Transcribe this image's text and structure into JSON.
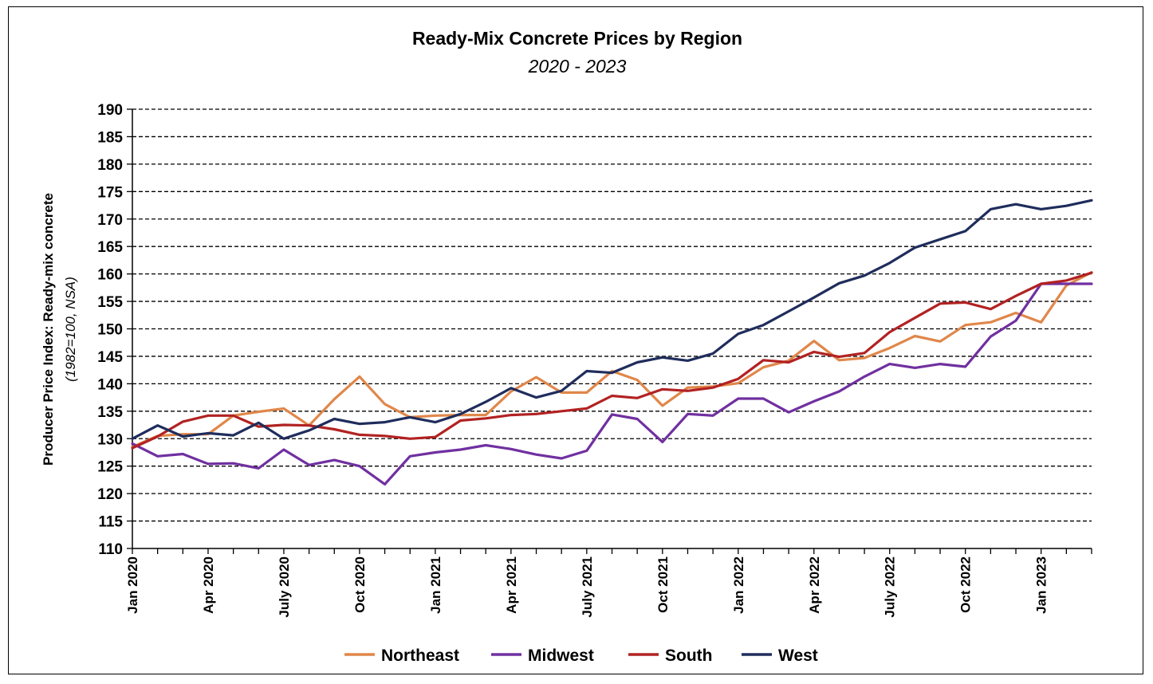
{
  "chart_data": {
    "type": "line",
    "title": "Ready-Mix Concrete Prices by Region",
    "subtitle": "2020 - 2023",
    "ylabel": "Producer Price Index: Ready-mix concrete",
    "ylabel_sub": "(1982=100, NSA)",
    "ylim": [
      110,
      190
    ],
    "ytick_step": 5,
    "grid": "horizontal dashed",
    "legend_position": "bottom",
    "x": [
      "Jan 2020",
      "Feb 2020",
      "Mar 2020",
      "Apr 2020",
      "May 2020",
      "Jun 2020",
      "Jul 2020",
      "Aug 2020",
      "Sep 2020",
      "Oct 2020",
      "Nov 2020",
      "Dec 2020",
      "Jan 2021",
      "Feb 2021",
      "Mar 2021",
      "Apr 2021",
      "May 2021",
      "Jun 2021",
      "Jul 2021",
      "Aug 2021",
      "Sep 2021",
      "Oct 2021",
      "Nov 2021",
      "Dec 2021",
      "Jan 2022",
      "Feb 2022",
      "Mar 2022",
      "Apr 2022",
      "May 2022",
      "Jun 2022",
      "Jul 2022",
      "Aug 2022",
      "Sep 2022",
      "Oct 2022",
      "Nov 2022",
      "Dec 2022",
      "Jan 2023",
      "Feb 2023",
      "Mar 2023"
    ],
    "x_tick_labels": [
      {
        "index": 0,
        "label": "Jan 2020"
      },
      {
        "index": 3,
        "label": "Apr 2020"
      },
      {
        "index": 6,
        "label": "July 2020"
      },
      {
        "index": 9,
        "label": "Oct 2020"
      },
      {
        "index": 12,
        "label": "Jan 2021"
      },
      {
        "index": 15,
        "label": "Apr 2021"
      },
      {
        "index": 18,
        "label": "July 2021"
      },
      {
        "index": 21,
        "label": "Oct 2021"
      },
      {
        "index": 24,
        "label": "Jan 2022"
      },
      {
        "index": 27,
        "label": "Apr 2022"
      },
      {
        "index": 30,
        "label": "July 2022"
      },
      {
        "index": 33,
        "label": "Oct 2022"
      },
      {
        "index": 36,
        "label": "Jan 2023"
      }
    ],
    "series": [
      {
        "name": "Northeast",
        "color": "#E0874A",
        "values": [
          128.5,
          130.5,
          130.8,
          130.8,
          134.2,
          134.9,
          135.5,
          132.4,
          137.2,
          141.3,
          136.3,
          133.9,
          134.2,
          134.3,
          134.3,
          138.6,
          141.2,
          138.4,
          138.4,
          142.3,
          140.7,
          136.0,
          139.3,
          139.5,
          140.1,
          143.0,
          144.2,
          147.8,
          144.3,
          144.7,
          146.5,
          148.7,
          147.7,
          150.7,
          151.2,
          152.9,
          151.2,
          157.9,
          160.3
        ]
      },
      {
        "name": "Midwest",
        "color": "#7030A0",
        "values": [
          129.1,
          126.8,
          127.2,
          125.4,
          125.5,
          124.6,
          128.0,
          125.2,
          126.1,
          125.0,
          121.7,
          126.8,
          127.5,
          128.0,
          128.8,
          128.1,
          127.1,
          126.4,
          127.8,
          134.4,
          133.6,
          129.4,
          134.5,
          134.2,
          137.3,
          137.3,
          134.8,
          136.8,
          138.6,
          141.3,
          143.6,
          142.9,
          143.6,
          143.1,
          148.6,
          151.5,
          158.2,
          158.2,
          158.2
        ]
      },
      {
        "name": "South",
        "color": "#B22222",
        "values": [
          128.3,
          130.4,
          133.1,
          134.2,
          134.2,
          132.2,
          132.5,
          132.4,
          131.7,
          130.7,
          130.5,
          130.0,
          130.3,
          133.3,
          133.7,
          134.3,
          134.5,
          135.0,
          135.5,
          137.8,
          137.4,
          139.0,
          138.7,
          139.3,
          140.9,
          144.3,
          143.9,
          145.8,
          144.9,
          145.6,
          149.4,
          152.0,
          154.6,
          154.8,
          153.6,
          156.0,
          158.2,
          158.8,
          160.2
        ]
      },
      {
        "name": "West",
        "color": "#1F2D5C",
        "values": [
          130.0,
          132.4,
          130.4,
          131.0,
          130.6,
          132.9,
          130.0,
          131.5,
          133.6,
          132.7,
          133.0,
          133.9,
          133.0,
          134.5,
          136.7,
          139.2,
          137.5,
          138.7,
          142.3,
          142.0,
          143.9,
          144.8,
          144.2,
          145.5,
          149.1,
          150.7,
          153.2,
          155.7,
          158.3,
          159.7,
          162.0,
          164.8,
          166.3,
          167.8,
          171.8,
          172.7,
          171.8,
          172.4,
          173.4
        ]
      }
    ]
  }
}
